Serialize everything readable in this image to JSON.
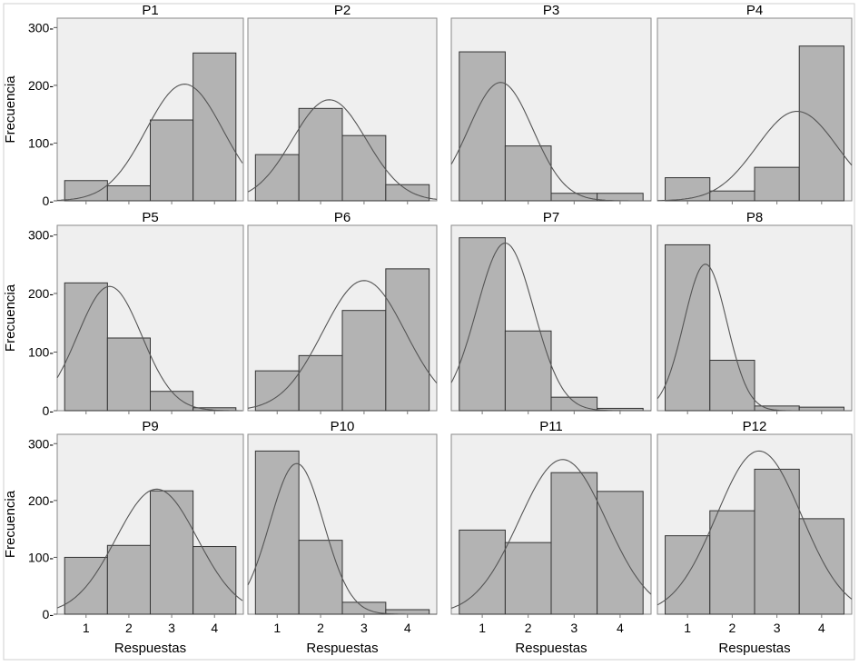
{
  "colors": {
    "panel_bg": "#efefef",
    "bar_fill": "#b3b3b3",
    "bar_edge": "#333333",
    "curve": "#555555",
    "frame": "#8a8a8a"
  },
  "ylabel": "Frecuencia",
  "xlabel": "Respuestas",
  "ytick_labels": [
    "300-",
    "200-",
    "100-",
    "0-"
  ],
  "chart_data": [
    {
      "type": "bar",
      "title": "P1",
      "categories": [
        1,
        2,
        3,
        4
      ],
      "values": [
        35,
        26,
        140,
        256
      ],
      "fit": {
        "mean": 3.3,
        "sd": 0.9,
        "peak": 202
      },
      "ylim": [
        0,
        310
      ]
    },
    {
      "type": "bar",
      "title": "P2",
      "categories": [
        1,
        2,
        3,
        4
      ],
      "values": [
        80,
        160,
        113,
        28
      ],
      "fit": {
        "mean": 2.2,
        "sd": 0.85,
        "peak": 175
      },
      "ylim": [
        0,
        310
      ]
    },
    {
      "type": "bar",
      "title": "P3",
      "categories": [
        1,
        2,
        3,
        4
      ],
      "values": [
        258,
        95,
        13,
        13
      ],
      "fit": {
        "mean": 1.4,
        "sd": 0.7,
        "peak": 205
      },
      "ylim": [
        0,
        310
      ]
    },
    {
      "type": "bar",
      "title": "P4",
      "categories": [
        1,
        2,
        3,
        4
      ],
      "values": [
        40,
        17,
        58,
        268
      ],
      "fit": {
        "mean": 3.45,
        "sd": 0.9,
        "peak": 155
      },
      "ylim": [
        0,
        310
      ]
    },
    {
      "type": "bar",
      "title": "P5",
      "categories": [
        1,
        2,
        3,
        4
      ],
      "values": [
        218,
        124,
        33,
        5
      ],
      "fit": {
        "mean": 1.55,
        "sd": 0.75,
        "peak": 212
      },
      "ylim": [
        0,
        310
      ]
    },
    {
      "type": "bar",
      "title": "P6",
      "categories": [
        1,
        2,
        3,
        4
      ],
      "values": [
        68,
        94,
        171,
        242
      ],
      "fit": {
        "mean": 3.0,
        "sd": 0.95,
        "peak": 222
      },
      "ylim": [
        0,
        310
      ]
    },
    {
      "type": "bar",
      "title": "P7",
      "categories": [
        1,
        2,
        3,
        4
      ],
      "values": [
        295,
        136,
        23,
        4
      ],
      "fit": {
        "mean": 1.5,
        "sd": 0.62,
        "peak": 286
      },
      "ylim": [
        0,
        310
      ]
    },
    {
      "type": "bar",
      "title": "P8",
      "categories": [
        1,
        2,
        3,
        4
      ],
      "values": [
        283,
        86,
        8,
        6
      ],
      "fit": {
        "mean": 1.4,
        "sd": 0.48,
        "peak": 250
      },
      "ylim": [
        0,
        310
      ]
    },
    {
      "type": "bar",
      "title": "P9",
      "categories": [
        1,
        2,
        3,
        4
      ],
      "values": [
        100,
        121,
        217,
        119
      ],
      "fit": {
        "mean": 2.65,
        "sd": 0.95,
        "peak": 220
      },
      "ylim": [
        0,
        310
      ]
    },
    {
      "type": "bar",
      "title": "P10",
      "categories": [
        1,
        2,
        3,
        4
      ],
      "values": [
        287,
        130,
        21,
        8
      ],
      "fit": {
        "mean": 1.45,
        "sd": 0.62,
        "peak": 265
      },
      "ylim": [
        0,
        310
      ]
    },
    {
      "type": "bar",
      "title": "P11",
      "categories": [
        1,
        2,
        3,
        4
      ],
      "values": [
        148,
        126,
        249,
        216
      ],
      "fit": {
        "mean": 2.75,
        "sd": 0.95,
        "peak": 272
      },
      "ylim": [
        0,
        310
      ]
    },
    {
      "type": "bar",
      "title": "P12",
      "categories": [
        1,
        2,
        3,
        4
      ],
      "values": [
        138,
        182,
        255,
        168
      ],
      "fit": {
        "mean": 2.6,
        "sd": 0.95,
        "peak": 287
      },
      "ylim": [
        0,
        310
      ]
    }
  ]
}
